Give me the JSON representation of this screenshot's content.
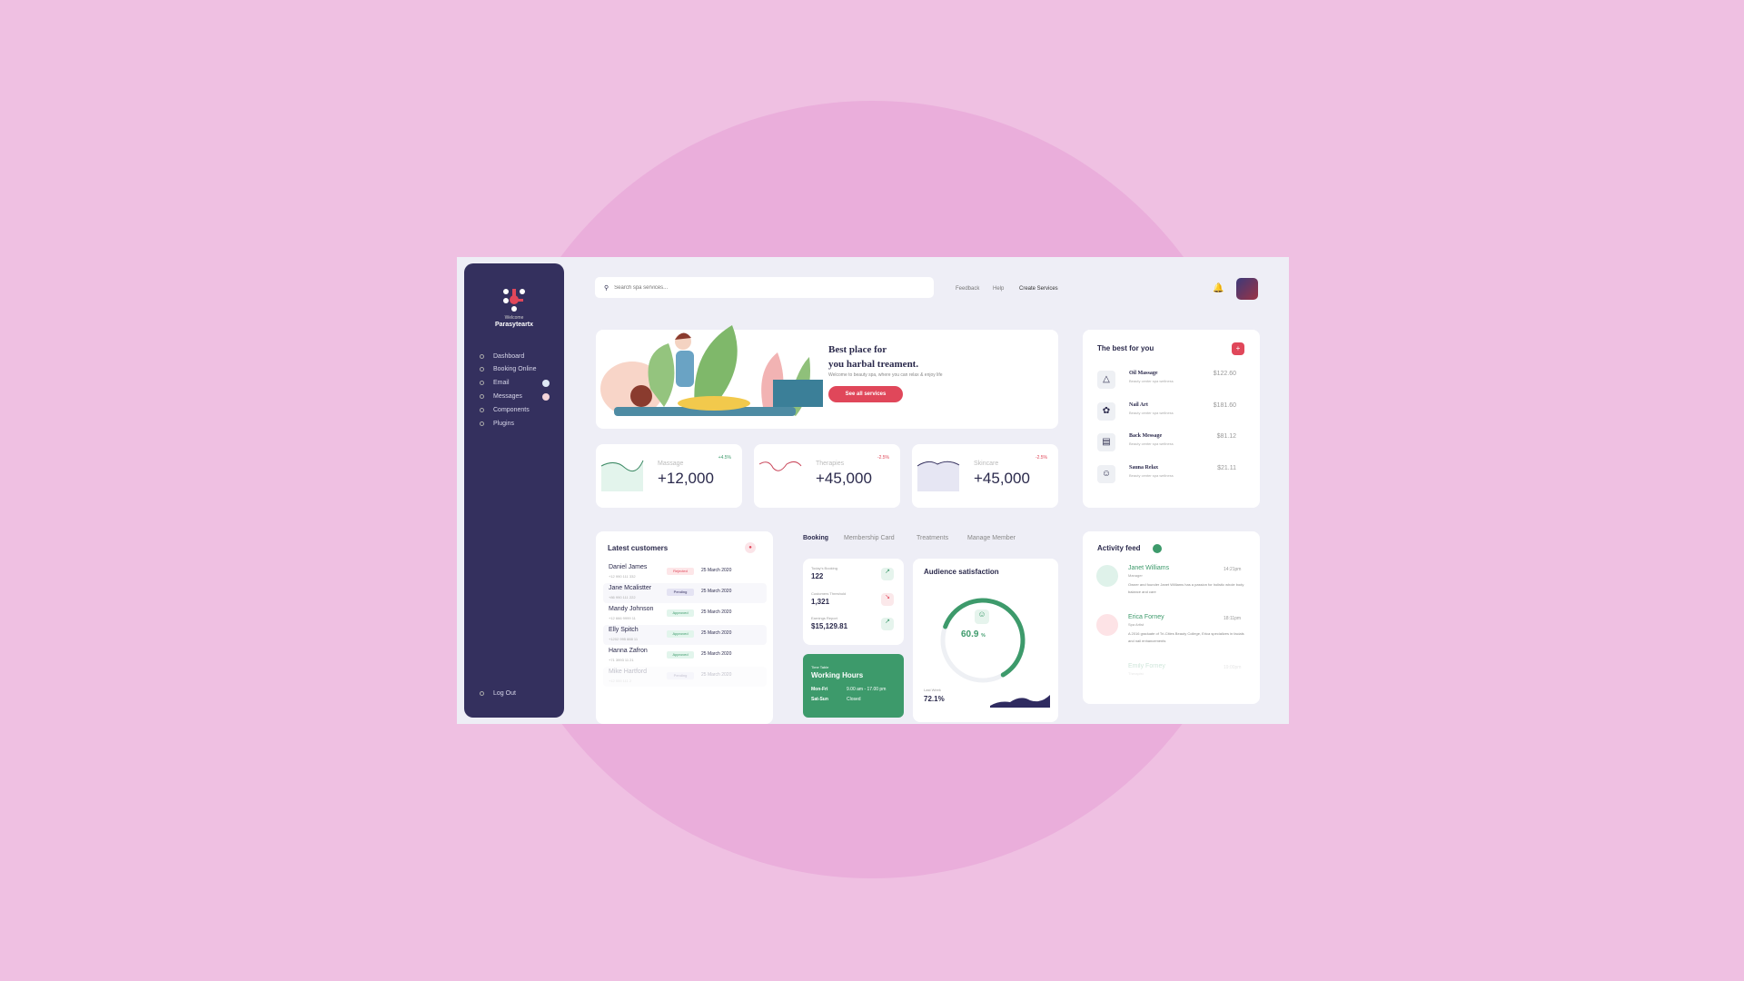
{
  "colors": {
    "background": "#efc0e2",
    "circle": "#eaaedb",
    "sidebar": "#34305e",
    "accent": "#e0475a",
    "green": "#3d9a6b"
  },
  "sidebar": {
    "welcome": "Welcome",
    "username": "Parasyteartx",
    "items": [
      {
        "label": "Dashboard",
        "icon": "home-icon"
      },
      {
        "label": "Booking Online",
        "icon": "calendar-icon"
      },
      {
        "label": "Email",
        "icon": "mail-icon"
      },
      {
        "label": "Messages",
        "icon": "chat-icon"
      },
      {
        "label": "Components",
        "icon": "grid-icon"
      },
      {
        "label": "Plugins",
        "icon": "plug-icon"
      }
    ],
    "logout": "Log Out"
  },
  "header": {
    "search_placeholder": "Search spa services...",
    "links": [
      "Feedback",
      "Help",
      "Create Services"
    ]
  },
  "hero": {
    "title_line1": "Best place for",
    "title_line2": "you harbal treament.",
    "subtitle": "Welcome to beauty spa, where you can relax & enjoy life",
    "button": "See all services"
  },
  "stats": [
    {
      "label": "Massage",
      "value": "+12,000",
      "change": "+4.5%"
    },
    {
      "label": "Therapies",
      "value": "+45,000",
      "change": "-2.5%"
    },
    {
      "label": "Skincare",
      "value": "+45,000",
      "change": "-2.5%"
    }
  ],
  "best": {
    "title": "The best for you",
    "items": [
      {
        "name": "Oil Massage",
        "desc": "Beauty center spa wellness",
        "price": "$122.60"
      },
      {
        "name": "Nail Art",
        "desc": "Beauty center spa wellness",
        "price": "$181.60"
      },
      {
        "name": "Back Message",
        "desc": "Beauty center spa wellness",
        "price": "$81.12"
      },
      {
        "name": "Sauna Relax",
        "desc": "Beauty center spa wellness",
        "price": "$21.11"
      }
    ]
  },
  "customers": {
    "title": "Latest customers",
    "rows": [
      {
        "name": "Daniel James",
        "phone": "+12 990 111 332",
        "status": "Rejected",
        "date": "25 March 2020"
      },
      {
        "name": "Jane Mcalistter",
        "phone": "+86 990 111 222",
        "status": "Pending",
        "date": "25 March 2020"
      },
      {
        "name": "Mandy Johnson",
        "phone": "+12 666 9999 11",
        "status": "Approved",
        "date": "25 March 2020"
      },
      {
        "name": "Elly Spitch",
        "phone": "+1202 995 888 11",
        "status": "Approved",
        "date": "25 March 2020"
      },
      {
        "name": "Hanna Zafron",
        "phone": "+71 3993 11 21",
        "status": "Approved",
        "date": "25 March 2020"
      },
      {
        "name": "Mike Hartford",
        "phone": "+12 555 111 2",
        "status": "Pending",
        "date": "25 March 2020"
      }
    ]
  },
  "tabs": [
    "Booking",
    "Membership Card",
    "Treatments",
    "Manage Member"
  ],
  "booking": [
    {
      "label": "Today's Booking",
      "value": "122"
    },
    {
      "label": "Customers Threshold",
      "value": "1,321"
    },
    {
      "label": "Earnings Report",
      "value": "$15,129.81"
    }
  ],
  "timetable": {
    "label": "Time Table",
    "title": "Working Hours",
    "rows": [
      {
        "days": "Mon-Fri",
        "hours": "9.00 am - 17.00 pm"
      },
      {
        "days": "Sat-Sun",
        "hours": "Closed"
      }
    ]
  },
  "audience": {
    "title": "Audience satisfaction",
    "value": "60.9",
    "unit": "%",
    "percent": 60.9,
    "last_week_label": "Last Week",
    "last_week": "72.1%"
  },
  "activity": {
    "title": "Activity feed",
    "items": [
      {
        "name": "Janet Williams",
        "role": "Manager",
        "time": "14:21pm",
        "text": "Owner and founder Janet Williams has a passion for holistic whole body balance and care"
      },
      {
        "name": "Erica Forney",
        "role": "Spa Artist",
        "time": "18:11pm",
        "text": "A 2016 graduate of Tri-Cities Beauty College, Erica specializes in facials and nail enhancements"
      },
      {
        "name": "Emily Forney",
        "role": "Therapist",
        "time": "19:00pm"
      }
    ]
  }
}
